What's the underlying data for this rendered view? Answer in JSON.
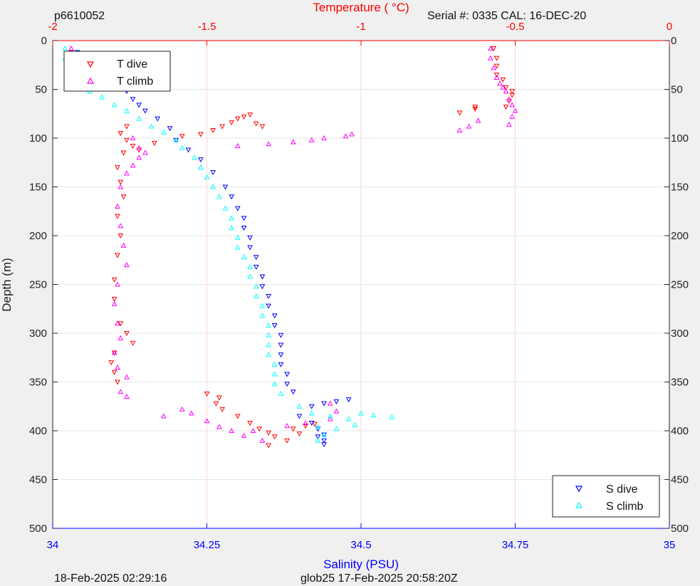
{
  "header": {
    "left_id": "p6610052",
    "serial": "Serial #: 0335  CAL: 16-DEC-20"
  },
  "footer": {
    "left": "18-Feb-2025 02:29:16",
    "center": "glob25 17-Feb-2025 20:58:20Z"
  },
  "chart_data": {
    "type": "scatter",
    "title": "",
    "top_axis": {
      "label": "Temperature (   °C)",
      "range": [
        -2,
        0
      ],
      "ticks": [
        -2,
        -1.5,
        -1,
        -0.5,
        0
      ],
      "tick_labels": [
        "-2",
        "-1.5",
        "-1",
        "-0.5",
        "0"
      ],
      "color": "#ff0000"
    },
    "bottom_axis": {
      "label": "Salinity (PSU)",
      "range": [
        34,
        35
      ],
      "ticks": [
        34,
        34.25,
        34.5,
        34.75,
        35
      ],
      "tick_labels": [
        "34",
        "34.25",
        "34.5",
        "34.75",
        "35"
      ],
      "color": "#0000ff"
    },
    "y_axis": {
      "label": "Depth (m)",
      "range": [
        0,
        500
      ],
      "reversed": true,
      "ticks": [
        0,
        50,
        100,
        150,
        200,
        250,
        300,
        350,
        400,
        450,
        500
      ],
      "tick_labels": [
        "0",
        "50",
        "100",
        "150",
        "200",
        "250",
        "300",
        "350",
        "400",
        "450",
        "500"
      ]
    },
    "grid": true,
    "legends": [
      {
        "placement": "top-left",
        "entries": [
          "T dive",
          "T climb"
        ]
      },
      {
        "placement": "bottom-right",
        "entries": [
          "S dive",
          "S climb"
        ]
      }
    ],
    "series": [
      {
        "name": "T dive",
        "axis": "temperature",
        "marker": "triangle-down",
        "color": "#ff0000",
        "points": [
          [
            -1.94,
            12
          ],
          [
            -1.93,
            22
          ],
          [
            -1.92,
            32
          ],
          [
            -1.91,
            42
          ],
          [
            -1.76,
            88
          ],
          [
            -1.78,
            95
          ],
          [
            -1.76,
            102
          ],
          [
            -1.74,
            108
          ],
          [
            -1.72,
            112
          ],
          [
            -1.67,
            105
          ],
          [
            -1.58,
            98
          ],
          [
            -1.52,
            96
          ],
          [
            -1.48,
            92
          ],
          [
            -1.45,
            88
          ],
          [
            -1.42,
            84
          ],
          [
            -1.4,
            80
          ],
          [
            -1.38,
            78
          ],
          [
            -1.36,
            76
          ],
          [
            -1.34,
            85
          ],
          [
            -1.32,
            88
          ],
          [
            -1.77,
            115
          ],
          [
            -1.79,
            130
          ],
          [
            -1.78,
            145
          ],
          [
            -1.77,
            160
          ],
          [
            -1.79,
            180
          ],
          [
            -1.78,
            200
          ],
          [
            -1.79,
            220
          ],
          [
            -1.8,
            245
          ],
          [
            -1.8,
            265
          ],
          [
            -1.78,
            290
          ],
          [
            -1.76,
            300
          ],
          [
            -1.74,
            310
          ],
          [
            -1.8,
            320
          ],
          [
            -1.81,
            330
          ],
          [
            -1.8,
            340
          ],
          [
            -1.79,
            350
          ],
          [
            -1.5,
            362
          ],
          [
            -1.46,
            366
          ],
          [
            -1.47,
            372
          ],
          [
            -1.45,
            378
          ],
          [
            -1.4,
            385
          ],
          [
            -1.36,
            392
          ],
          [
            -1.33,
            398
          ],
          [
            -1.3,
            402
          ],
          [
            -1.28,
            406
          ],
          [
            -1.22,
            398
          ],
          [
            -1.18,
            395
          ],
          [
            -1.15,
            393
          ],
          [
            -1.2,
            403
          ],
          [
            -1.24,
            410
          ],
          [
            -1.3,
            415
          ],
          [
            -0.68,
            74
          ],
          [
            -0.63,
            68
          ],
          [
            -0.63,
            70
          ],
          [
            -0.57,
            8
          ],
          [
            -0.56,
            18
          ],
          [
            -0.56,
            26
          ],
          [
            -0.56,
            35
          ],
          [
            -0.54,
            40
          ],
          [
            -0.53,
            48
          ],
          [
            -0.51,
            52
          ],
          [
            -0.51,
            56
          ],
          [
            -0.52,
            62
          ],
          [
            -0.53,
            68
          ]
        ]
      },
      {
        "name": "T climb",
        "axis": "temperature",
        "marker": "triangle-up",
        "color": "#ff00ff",
        "points": [
          [
            -1.94,
            8
          ],
          [
            -1.93,
            20
          ],
          [
            -1.92,
            30
          ],
          [
            -1.91,
            40
          ],
          [
            -1.74,
            100
          ],
          [
            -1.72,
            110
          ],
          [
            -1.7,
            115
          ],
          [
            -1.72,
            120
          ],
          [
            -1.74,
            128
          ],
          [
            -1.76,
            136
          ],
          [
            -1.78,
            150
          ],
          [
            -1.79,
            170
          ],
          [
            -1.78,
            190
          ],
          [
            -1.77,
            210
          ],
          [
            -1.76,
            230
          ],
          [
            -1.79,
            250
          ],
          [
            -1.8,
            270
          ],
          [
            -1.79,
            290
          ],
          [
            -1.78,
            305
          ],
          [
            -1.8,
            320
          ],
          [
            -1.79,
            335
          ],
          [
            -1.76,
            345
          ],
          [
            -1.78,
            360
          ],
          [
            -1.76,
            365
          ],
          [
            -1.64,
            385
          ],
          [
            -1.58,
            378
          ],
          [
            -1.55,
            382
          ],
          [
            -1.5,
            390
          ],
          [
            -1.46,
            396
          ],
          [
            -1.42,
            400
          ],
          [
            -1.38,
            405
          ],
          [
            -1.35,
            400
          ],
          [
            -1.32,
            410
          ],
          [
            -1.1,
            372
          ],
          [
            -1.08,
            380
          ],
          [
            -1.1,
            388
          ],
          [
            -1.18,
            392
          ],
          [
            -1.24,
            395
          ],
          [
            -1.05,
            98
          ],
          [
            -1.03,
            96
          ],
          [
            -1.12,
            100
          ],
          [
            -1.16,
            102
          ],
          [
            -1.22,
            104
          ],
          [
            -1.3,
            106
          ],
          [
            -1.4,
            108
          ],
          [
            -0.58,
            8
          ],
          [
            -0.58,
            18
          ],
          [
            -0.57,
            28
          ],
          [
            -0.56,
            38
          ],
          [
            -0.55,
            44
          ],
          [
            -0.54,
            48
          ],
          [
            -0.53,
            52
          ],
          [
            -0.52,
            60
          ],
          [
            -0.51,
            66
          ],
          [
            -0.5,
            72
          ],
          [
            -0.51,
            78
          ],
          [
            -0.52,
            86
          ],
          [
            -0.62,
            82
          ],
          [
            -0.65,
            88
          ],
          [
            -0.68,
            92
          ]
        ]
      },
      {
        "name": "S dive",
        "axis": "salinity",
        "marker": "triangle-down",
        "color": "#0000ff",
        "points": [
          [
            34.04,
            12
          ],
          [
            34.04,
            22
          ],
          [
            34.05,
            30
          ],
          [
            34.05,
            38
          ],
          [
            34.1,
            45
          ],
          [
            34.12,
            52
          ],
          [
            34.13,
            60
          ],
          [
            34.14,
            66
          ],
          [
            34.15,
            72
          ],
          [
            34.17,
            80
          ],
          [
            34.19,
            90
          ],
          [
            34.2,
            102
          ],
          [
            34.22,
            112
          ],
          [
            34.24,
            122
          ],
          [
            34.26,
            135
          ],
          [
            34.28,
            150
          ],
          [
            34.29,
            160
          ],
          [
            34.3,
            172
          ],
          [
            34.31,
            182
          ],
          [
            34.31,
            192
          ],
          [
            34.32,
            202
          ],
          [
            34.32,
            212
          ],
          [
            34.33,
            222
          ],
          [
            34.33,
            232
          ],
          [
            34.34,
            242
          ],
          [
            34.34,
            252
          ],
          [
            34.35,
            262
          ],
          [
            34.35,
            272
          ],
          [
            34.36,
            282
          ],
          [
            34.36,
            292
          ],
          [
            34.37,
            302
          ],
          [
            34.37,
            312
          ],
          [
            34.37,
            322
          ],
          [
            34.37,
            332
          ],
          [
            34.38,
            342
          ],
          [
            34.38,
            352
          ],
          [
            34.39,
            360
          ],
          [
            34.42,
            375
          ],
          [
            34.44,
            372
          ],
          [
            34.46,
            370
          ],
          [
            34.48,
            368
          ],
          [
            34.4,
            385
          ],
          [
            34.42,
            392
          ],
          [
            34.43,
            398
          ],
          [
            34.44,
            404
          ],
          [
            34.44,
            410
          ],
          [
            34.44,
            414
          ],
          [
            34.43,
            406
          ]
        ]
      },
      {
        "name": "S climb",
        "axis": "salinity",
        "marker": "triangle-up",
        "color": "#00ffff",
        "points": [
          [
            34.02,
            8
          ],
          [
            34.02,
            18
          ],
          [
            34.03,
            26
          ],
          [
            34.03,
            34
          ],
          [
            34.04,
            42
          ],
          [
            34.06,
            52
          ],
          [
            34.08,
            58
          ],
          [
            34.1,
            66
          ],
          [
            34.12,
            72
          ],
          [
            34.14,
            80
          ],
          [
            34.16,
            88
          ],
          [
            34.18,
            94
          ],
          [
            34.2,
            102
          ],
          [
            34.21,
            110
          ],
          [
            34.23,
            120
          ],
          [
            34.24,
            130
          ],
          [
            34.25,
            140
          ],
          [
            34.26,
            150
          ],
          [
            34.27,
            160
          ],
          [
            34.28,
            172
          ],
          [
            34.29,
            182
          ],
          [
            34.29,
            192
          ],
          [
            34.3,
            202
          ],
          [
            34.3,
            212
          ],
          [
            34.31,
            222
          ],
          [
            34.32,
            232
          ],
          [
            34.32,
            242
          ],
          [
            34.33,
            252
          ],
          [
            34.33,
            262
          ],
          [
            34.34,
            272
          ],
          [
            34.34,
            282
          ],
          [
            34.35,
            292
          ],
          [
            34.35,
            302
          ],
          [
            34.35,
            312
          ],
          [
            34.35,
            322
          ],
          [
            34.36,
            332
          ],
          [
            34.36,
            342
          ],
          [
            34.36,
            352
          ],
          [
            34.37,
            362
          ],
          [
            34.4,
            375
          ],
          [
            34.42,
            382
          ],
          [
            34.45,
            385
          ],
          [
            34.48,
            388
          ],
          [
            34.5,
            382
          ],
          [
            34.52,
            384
          ],
          [
            34.55,
            386
          ],
          [
            34.49,
            394
          ],
          [
            34.43,
            396
          ],
          [
            34.46,
            398
          ],
          [
            34.44,
            404
          ],
          [
            34.43,
            410
          ]
        ]
      }
    ]
  }
}
